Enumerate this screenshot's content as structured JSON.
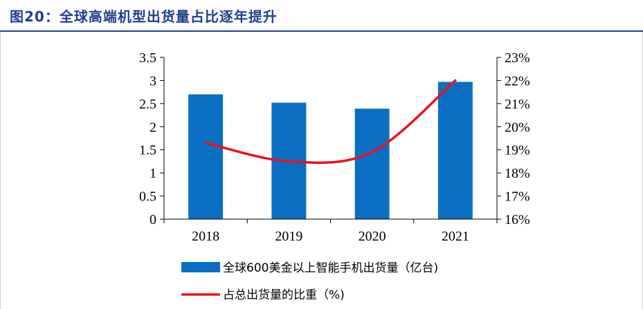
{
  "title": "图20：全球高端机型出货量占比逐年提升",
  "chart_data": {
    "type": "bar",
    "categories": [
      "2018",
      "2019",
      "2020",
      "2021"
    ],
    "series": [
      {
        "name": "全球600美金以上智能手机出货量（亿台)",
        "type": "bar",
        "axis": "left",
        "color": "#0a6fc2",
        "values": [
          2.7,
          2.52,
          2.39,
          2.97
        ]
      },
      {
        "name": "占总出货量的比重（%)",
        "type": "line",
        "axis": "right",
        "color": "#e8131c",
        "values": [
          19.3,
          18.5,
          18.9,
          22.0
        ]
      }
    ],
    "left_axis": {
      "min": 0,
      "max": 3.5,
      "ticks": [
        "0",
        "0.5",
        "1",
        "1.5",
        "2",
        "2.5",
        "3",
        "3.5"
      ]
    },
    "right_axis": {
      "min": 16,
      "max": 23,
      "ticks": [
        "16%",
        "17%",
        "18%",
        "19%",
        "20%",
        "21%",
        "22%",
        "23%"
      ]
    },
    "grid": false,
    "legend_position": "bottom"
  }
}
